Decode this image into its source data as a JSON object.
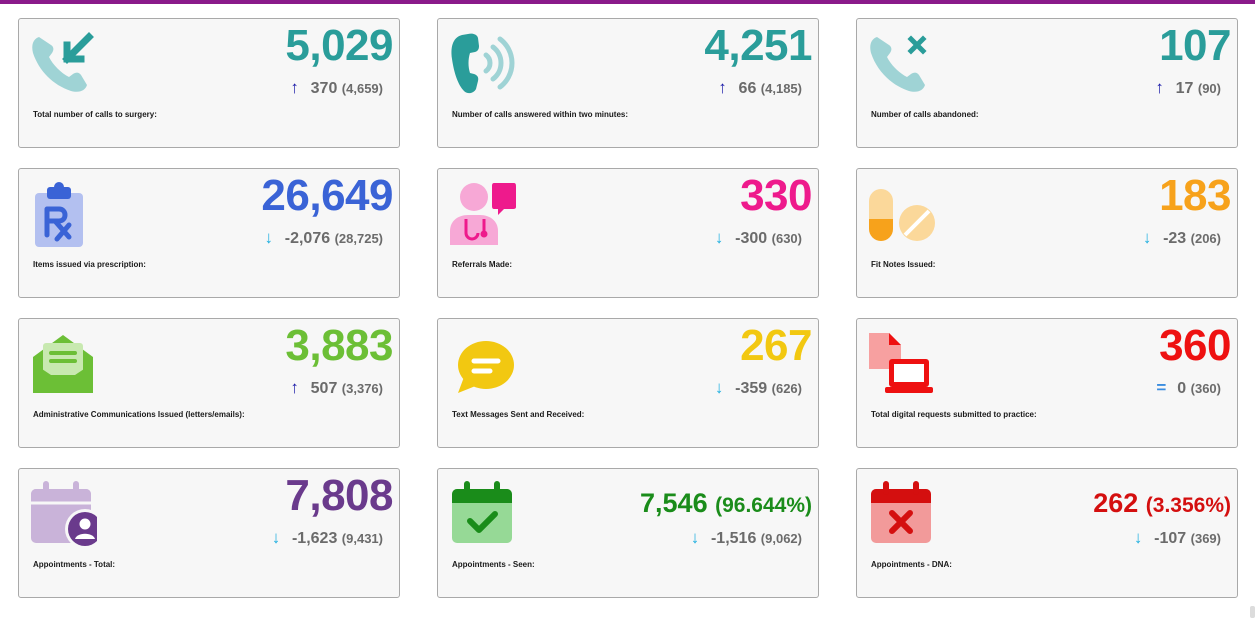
{
  "colors": {
    "topbar": "#8a1a8a",
    "teal": "#2a9d9a",
    "blue": "#3a63d6",
    "magenta": "#ee1a8c",
    "orange": "#f7a21b",
    "green": "#6cbf36",
    "yellow": "#f2c811",
    "red": "#ee1111",
    "purple": "#6a3a8c",
    "dark_green": "#1a8c1a",
    "dark_red": "#d40f0f"
  },
  "cards": [
    {
      "id": "calls-total",
      "icon": "phone-incoming-icon",
      "value": "5,029",
      "direction": "up",
      "arrow": "↑",
      "change": "370",
      "previous": "(4,659)",
      "label": "Total number of calls to surgery:"
    },
    {
      "id": "calls-answered",
      "icon": "phone-ringing-icon",
      "value": "4,251",
      "direction": "up",
      "arrow": "↑",
      "change": "66",
      "previous": "(4,185)",
      "label": "Number of calls answered within two minutes:"
    },
    {
      "id": "calls-abandoned",
      "icon": "phone-missed-icon",
      "value": "107",
      "direction": "up",
      "arrow": "↑",
      "change": "17",
      "previous": "(90)",
      "label": "Number of calls abandoned:"
    },
    {
      "id": "prescriptions",
      "icon": "prescription-clipboard-icon",
      "value": "26,649",
      "direction": "down",
      "arrow": "↓",
      "change": "-2,076",
      "previous": "(28,725)",
      "label": "Items issued via prescription:"
    },
    {
      "id": "referrals",
      "icon": "doctor-referral-icon",
      "value": "330",
      "direction": "down",
      "arrow": "↓",
      "change": "-300",
      "previous": "(630)",
      "label": "Referrals Made:"
    },
    {
      "id": "fit-notes",
      "icon": "pills-icon",
      "value": "183",
      "direction": "down",
      "arrow": "↓",
      "change": "-23",
      "previous": "(206)",
      "label": "Fit Notes Issued:"
    },
    {
      "id": "admin-comms",
      "icon": "envelope-letter-icon",
      "value": "3,883",
      "direction": "up",
      "arrow": "↑",
      "change": "507",
      "previous": "(3,376)",
      "label": "Administrative Communications Issued (letters/emails):"
    },
    {
      "id": "text-messages",
      "icon": "chat-bubble-icon",
      "value": "267",
      "direction": "down",
      "arrow": "↓",
      "change": "-359",
      "previous": "(626)",
      "label": "Text Messages Sent and Received:"
    },
    {
      "id": "digital-requests",
      "icon": "laptop-document-icon",
      "value": "360",
      "direction": "eq",
      "arrow": "=",
      "change": "0",
      "previous": "(360)",
      "label": "Total digital requests submitted to practice:"
    },
    {
      "id": "appointments-total",
      "icon": "calendar-user-icon",
      "value": "7,808",
      "direction": "down",
      "arrow": "↓",
      "change": "-1,623",
      "previous": "(9,431)",
      "label": "Appointments - Total:"
    },
    {
      "id": "appointments-seen",
      "icon": "calendar-check-icon",
      "value": "7,546",
      "percent": "(96.644%)",
      "direction": "down",
      "arrow": "↓",
      "change": "-1,516",
      "previous": "(9,062)",
      "label": "Appointments - Seen:"
    },
    {
      "id": "appointments-dna",
      "icon": "calendar-cross-icon",
      "value": "262",
      "percent": "(3.356%)",
      "direction": "down",
      "arrow": "↓",
      "change": "-107",
      "previous": "(369)",
      "label": "Appointments - DNA:"
    }
  ]
}
